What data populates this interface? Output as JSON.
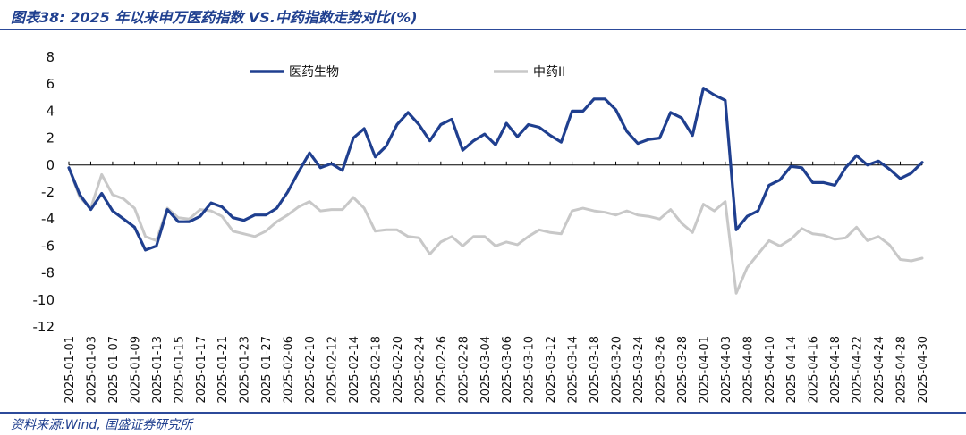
{
  "header": {
    "title": "图表38:  2025 年以来申万医药指数 VS.中药指数走势对比(%)"
  },
  "footer": {
    "source": "资料来源:Wind, 国盛证券研究所"
  },
  "colors": {
    "series1": "#1f3f8f",
    "series2": "#c8c8c8",
    "rule": "#2c4a9a",
    "axis": "#000000"
  },
  "chart_data": {
    "type": "line",
    "title": "图表38:  2025 年以来申万医药指数 VS.中药指数走势对比(%)",
    "ylim": [
      -12,
      8
    ],
    "yticks": [
      8,
      6,
      4,
      2,
      0,
      -2,
      -4,
      -6,
      -8,
      -10,
      -12
    ],
    "grid": false,
    "legend_position": "top",
    "x_tick_labels": [
      "2025-01-01",
      "2025-01-03",
      "2025-01-07",
      "2025-01-09",
      "2025-01-13",
      "2025-01-15",
      "2025-01-17",
      "2025-01-21",
      "2025-01-23",
      "2025-01-27",
      "2025-02-06",
      "2025-02-10",
      "2025-02-12",
      "2025-02-14",
      "2025-02-18",
      "2025-02-20",
      "2025-02-24",
      "2025-02-26",
      "2025-02-28",
      "2025-03-04",
      "2025-03-06",
      "2025-03-10",
      "2025-03-12",
      "2025-03-14",
      "2025-03-18",
      "2025-03-20",
      "2025-03-24",
      "2025-03-26",
      "2025-03-28",
      "2025-04-01",
      "2025-04-03",
      "2025-04-08",
      "2025-04-10",
      "2025-04-14",
      "2025-04-16",
      "2025-04-18",
      "2025-04-22",
      "2025-04-24",
      "2025-04-28",
      "2025-04-30"
    ],
    "series": [
      {
        "name": "医药生物",
        "values": [
          -0.2,
          -2.2,
          -3.3,
          -2.1,
          -3.4,
          -4.0,
          -4.6,
          -6.3,
          -6.0,
          -3.3,
          -4.2,
          -4.2,
          -3.8,
          -2.8,
          -3.1,
          -3.9,
          -4.1,
          -3.7,
          -3.7,
          -3.2,
          -2.0,
          -0.5,
          0.9,
          -0.2,
          0.1,
          -0.4,
          2.0,
          2.7,
          0.6,
          1.4,
          3.0,
          3.9,
          3.0,
          1.8,
          3.0,
          3.4,
          1.1,
          1.8,
          2.3,
          1.5,
          3.1,
          2.1,
          3.0,
          2.8,
          2.2,
          1.7,
          4.0,
          4.0,
          4.9,
          4.9,
          4.1,
          2.5,
          1.6,
          1.9,
          2.0,
          3.9,
          3.5,
          2.2,
          5.7,
          5.2,
          4.8,
          -4.8,
          -3.8,
          -3.4,
          -1.5,
          -1.1,
          -0.1,
          -0.2,
          -1.3,
          -1.3,
          -1.5,
          -0.2,
          0.7,
          0.0,
          0.3,
          -0.3,
          -1.0,
          -0.6,
          0.2
        ]
      },
      {
        "name": "中药II",
        "values": [
          -0.2,
          -2.4,
          -3.2,
          -0.7,
          -2.2,
          -2.5,
          -3.2,
          -5.3,
          -5.6,
          -3.2,
          -3.9,
          -4.0,
          -3.3,
          -3.4,
          -3.8,
          -4.9,
          -5.1,
          -5.3,
          -4.9,
          -4.2,
          -3.7,
          -3.1,
          -2.7,
          -3.4,
          -3.3,
          -3.3,
          -2.4,
          -3.2,
          -4.9,
          -4.8,
          -4.8,
          -5.3,
          -5.4,
          -6.6,
          -5.7,
          -5.3,
          -6.0,
          -5.3,
          -5.3,
          -6.0,
          -5.7,
          -5.9,
          -5.3,
          -4.8,
          -5.0,
          -5.1,
          -3.4,
          -3.2,
          -3.4,
          -3.5,
          -3.7,
          -3.4,
          -3.7,
          -3.8,
          -4.0,
          -3.3,
          -4.3,
          -5.0,
          -2.9,
          -3.4,
          -2.7,
          -9.5,
          -7.6,
          -6.6,
          -5.6,
          -6.0,
          -5.5,
          -4.7,
          -5.1,
          -5.2,
          -5.5,
          -5.4,
          -4.6,
          -5.6,
          -5.3,
          -5.9,
          -7.0,
          -7.1,
          -6.9
        ]
      }
    ]
  }
}
